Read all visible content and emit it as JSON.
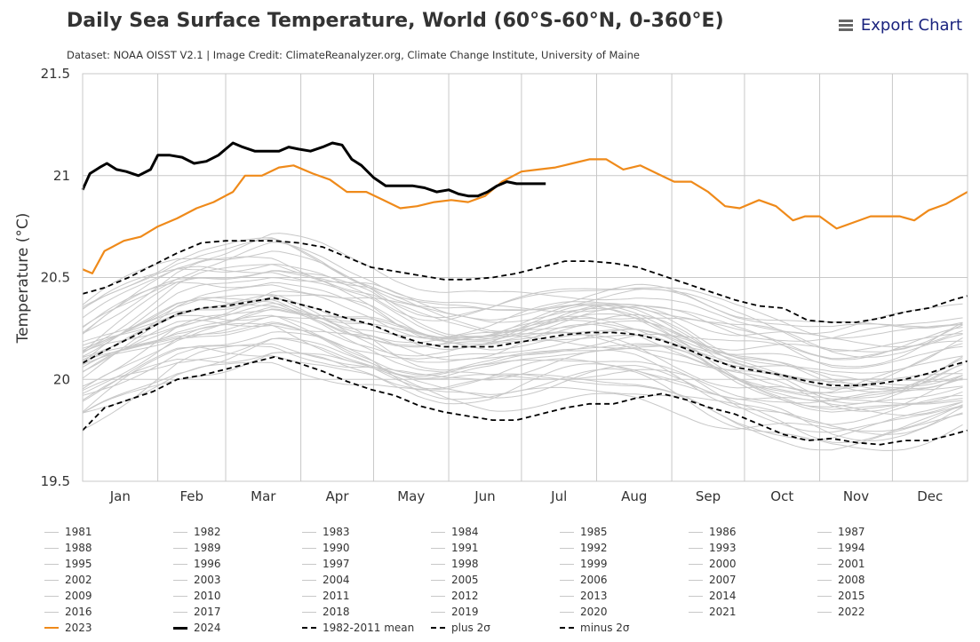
{
  "title": "Daily Sea Surface Temperature, World (60°S-60°N, 0-360°E)",
  "subtitle": "Dataset: NOAA OISST V2.1 | Image Credit: ClimateReanalyzer.org, Climate Change Institute, University of Maine",
  "export_label": "Export Chart",
  "colors": {
    "grey": "#c8c8c8",
    "y2023": "#ef8a1a",
    "y2024": "#000000",
    "mean": "#000000",
    "grid": "#c8c8c8"
  },
  "legend": [
    {
      "label": "1981",
      "style": "grey"
    },
    {
      "label": "1982",
      "style": "grey"
    },
    {
      "label": "1983",
      "style": "grey"
    },
    {
      "label": "1984",
      "style": "grey"
    },
    {
      "label": "1985",
      "style": "grey"
    },
    {
      "label": "1986",
      "style": "grey"
    },
    {
      "label": "1987",
      "style": "grey"
    },
    {
      "label": "1988",
      "style": "grey"
    },
    {
      "label": "1989",
      "style": "grey"
    },
    {
      "label": "1990",
      "style": "grey"
    },
    {
      "label": "1991",
      "style": "grey"
    },
    {
      "label": "1992",
      "style": "grey"
    },
    {
      "label": "1993",
      "style": "grey"
    },
    {
      "label": "1994",
      "style": "grey"
    },
    {
      "label": "1995",
      "style": "grey"
    },
    {
      "label": "1996",
      "style": "grey"
    },
    {
      "label": "1997",
      "style": "grey"
    },
    {
      "label": "1998",
      "style": "grey"
    },
    {
      "label": "1999",
      "style": "grey"
    },
    {
      "label": "2000",
      "style": "grey"
    },
    {
      "label": "2001",
      "style": "grey"
    },
    {
      "label": "2002",
      "style": "grey"
    },
    {
      "label": "2003",
      "style": "grey"
    },
    {
      "label": "2004",
      "style": "grey"
    },
    {
      "label": "2005",
      "style": "grey"
    },
    {
      "label": "2006",
      "style": "grey"
    },
    {
      "label": "2007",
      "style": "grey"
    },
    {
      "label": "2008",
      "style": "grey"
    },
    {
      "label": "2009",
      "style": "grey"
    },
    {
      "label": "2010",
      "style": "grey"
    },
    {
      "label": "2011",
      "style": "grey"
    },
    {
      "label": "2012",
      "style": "grey"
    },
    {
      "label": "2013",
      "style": "grey"
    },
    {
      "label": "2014",
      "style": "grey"
    },
    {
      "label": "2015",
      "style": "grey"
    },
    {
      "label": "2016",
      "style": "grey"
    },
    {
      "label": "2017",
      "style": "grey"
    },
    {
      "label": "2018",
      "style": "grey"
    },
    {
      "label": "2019",
      "style": "grey"
    },
    {
      "label": "2020",
      "style": "grey"
    },
    {
      "label": "2021",
      "style": "grey"
    },
    {
      "label": "2022",
      "style": "grey"
    },
    {
      "label": "2023",
      "style": "y2023"
    },
    {
      "label": "2024",
      "style": "y2024"
    },
    {
      "label": "1982-2011 mean",
      "style": "mean"
    },
    {
      "label": "plus 2σ",
      "style": "sigma"
    },
    {
      "label": "minus 2σ",
      "style": "sigma"
    }
  ],
  "chart_data": {
    "type": "line",
    "xlabel": "",
    "ylabel": "Temperature (°C)",
    "ylim": [
      19.5,
      21.5
    ],
    "yticks": [
      19.5,
      20,
      20.5,
      21,
      21.5
    ],
    "ytick_labels": [
      "19.5",
      "20",
      "20.5",
      "21",
      "21.5"
    ],
    "xlim": [
      1,
      366
    ],
    "month_labels": [
      "Jan",
      "Feb",
      "Mar",
      "Apr",
      "May",
      "Jun",
      "Jul",
      "Aug",
      "Sep",
      "Oct",
      "Nov",
      "Dec"
    ],
    "month_starts": [
      1,
      32,
      60,
      91,
      121,
      152,
      182,
      213,
      244,
      274,
      305,
      335
    ],
    "grid": true,
    "legend_position": "bottom",
    "series": [
      {
        "name": "2023",
        "role": "highlight-orange",
        "points": [
          [
            1,
            20.54
          ],
          [
            5,
            20.52
          ],
          [
            10,
            20.63
          ],
          [
            18,
            20.68
          ],
          [
            25,
            20.7
          ],
          [
            32,
            20.75
          ],
          [
            40,
            20.79
          ],
          [
            48,
            20.84
          ],
          [
            55,
            20.87
          ],
          [
            63,
            20.92
          ],
          [
            68,
            21.0
          ],
          [
            75,
            21.0
          ],
          [
            82,
            21.04
          ],
          [
            88,
            21.05
          ],
          [
            96,
            21.01
          ],
          [
            103,
            20.98
          ],
          [
            110,
            20.92
          ],
          [
            118,
            20.92
          ],
          [
            125,
            20.88
          ],
          [
            132,
            20.84
          ],
          [
            139,
            20.85
          ],
          [
            146,
            20.87
          ],
          [
            153,
            20.88
          ],
          [
            160,
            20.87
          ],
          [
            167,
            20.9
          ],
          [
            174,
            20.97
          ],
          [
            182,
            21.02
          ],
          [
            189,
            21.03
          ],
          [
            196,
            21.04
          ],
          [
            203,
            21.06
          ],
          [
            210,
            21.08
          ],
          [
            217,
            21.08
          ],
          [
            224,
            21.03
          ],
          [
            231,
            21.05
          ],
          [
            238,
            21.01
          ],
          [
            245,
            20.97
          ],
          [
            252,
            20.97
          ],
          [
            259,
            20.92
          ],
          [
            266,
            20.85
          ],
          [
            272,
            20.84
          ],
          [
            280,
            20.88
          ],
          [
            287,
            20.85
          ],
          [
            294,
            20.78
          ],
          [
            299,
            20.8
          ],
          [
            305,
            20.8
          ],
          [
            312,
            20.74
          ],
          [
            319,
            20.77
          ],
          [
            326,
            20.8
          ],
          [
            332,
            20.8
          ],
          [
            338,
            20.8
          ],
          [
            344,
            20.78
          ],
          [
            350,
            20.83
          ],
          [
            357,
            20.86
          ],
          [
            366,
            20.92
          ]
        ]
      },
      {
        "name": "2024",
        "role": "highlight-black",
        "points": [
          [
            1,
            20.93
          ],
          [
            4,
            21.01
          ],
          [
            8,
            21.04
          ],
          [
            11,
            21.06
          ],
          [
            15,
            21.03
          ],
          [
            19,
            21.02
          ],
          [
            24,
            21.0
          ],
          [
            29,
            21.03
          ],
          [
            32,
            21.1
          ],
          [
            37,
            21.1
          ],
          [
            42,
            21.09
          ],
          [
            47,
            21.06
          ],
          [
            52,
            21.07
          ],
          [
            57,
            21.1
          ],
          [
            60,
            21.13
          ],
          [
            63,
            21.16
          ],
          [
            67,
            21.14
          ],
          [
            72,
            21.12
          ],
          [
            77,
            21.12
          ],
          [
            82,
            21.12
          ],
          [
            86,
            21.14
          ],
          [
            90,
            21.13
          ],
          [
            95,
            21.12
          ],
          [
            100,
            21.14
          ],
          [
            104,
            21.16
          ],
          [
            108,
            21.15
          ],
          [
            112,
            21.08
          ],
          [
            116,
            21.05
          ],
          [
            121,
            20.99
          ],
          [
            126,
            20.95
          ],
          [
            131,
            20.95
          ],
          [
            137,
            20.95
          ],
          [
            142,
            20.94
          ],
          [
            147,
            20.92
          ],
          [
            152,
            20.93
          ],
          [
            156,
            20.91
          ],
          [
            160,
            20.9
          ],
          [
            164,
            20.9
          ],
          [
            168,
            20.92
          ],
          [
            172,
            20.95
          ],
          [
            176,
            20.97
          ],
          [
            180,
            20.96
          ],
          [
            184,
            20.96
          ],
          [
            188,
            20.96
          ],
          [
            192,
            20.96
          ]
        ]
      },
      {
        "name": "1982-2011 mean",
        "role": "mean",
        "points": [
          [
            1,
            20.08
          ],
          [
            10,
            20.14
          ],
          [
            20,
            20.2
          ],
          [
            30,
            20.26
          ],
          [
            40,
            20.32
          ],
          [
            50,
            20.35
          ],
          [
            60,
            20.36
          ],
          [
            70,
            20.38
          ],
          [
            80,
            20.4
          ],
          [
            90,
            20.37
          ],
          [
            100,
            20.34
          ],
          [
            110,
            20.3
          ],
          [
            120,
            20.27
          ],
          [
            130,
            20.22
          ],
          [
            140,
            20.18
          ],
          [
            150,
            20.16
          ],
          [
            160,
            20.16
          ],
          [
            170,
            20.16
          ],
          [
            180,
            20.18
          ],
          [
            190,
            20.2
          ],
          [
            200,
            20.22
          ],
          [
            210,
            20.23
          ],
          [
            220,
            20.23
          ],
          [
            230,
            20.22
          ],
          [
            240,
            20.19
          ],
          [
            250,
            20.15
          ],
          [
            260,
            20.1
          ],
          [
            270,
            20.06
          ],
          [
            280,
            20.04
          ],
          [
            290,
            20.02
          ],
          [
            300,
            19.99
          ],
          [
            310,
            19.97
          ],
          [
            320,
            19.97
          ],
          [
            330,
            19.98
          ],
          [
            340,
            20.0
          ],
          [
            350,
            20.03
          ],
          [
            360,
            20.07
          ],
          [
            366,
            20.09
          ]
        ]
      },
      {
        "name": "plus 2σ",
        "role": "sigma",
        "points": [
          [
            1,
            20.42
          ],
          [
            10,
            20.45
          ],
          [
            20,
            20.5
          ],
          [
            30,
            20.56
          ],
          [
            40,
            20.62
          ],
          [
            50,
            20.67
          ],
          [
            60,
            20.68
          ],
          [
            70,
            20.68
          ],
          [
            80,
            20.68
          ],
          [
            90,
            20.67
          ],
          [
            100,
            20.65
          ],
          [
            110,
            20.6
          ],
          [
            120,
            20.55
          ],
          [
            130,
            20.53
          ],
          [
            140,
            20.51
          ],
          [
            150,
            20.49
          ],
          [
            160,
            20.49
          ],
          [
            170,
            20.5
          ],
          [
            180,
            20.52
          ],
          [
            190,
            20.55
          ],
          [
            200,
            20.58
          ],
          [
            210,
            20.58
          ],
          [
            220,
            20.57
          ],
          [
            230,
            20.55
          ],
          [
            240,
            20.51
          ],
          [
            250,
            20.47
          ],
          [
            260,
            20.43
          ],
          [
            270,
            20.39
          ],
          [
            280,
            20.36
          ],
          [
            290,
            20.35
          ],
          [
            300,
            20.29
          ],
          [
            310,
            20.28
          ],
          [
            320,
            20.28
          ],
          [
            330,
            20.3
          ],
          [
            340,
            20.33
          ],
          [
            350,
            20.35
          ],
          [
            360,
            20.39
          ],
          [
            366,
            20.41
          ]
        ]
      },
      {
        "name": "minus 2σ",
        "role": "sigma",
        "points": [
          [
            1,
            19.75
          ],
          [
            10,
            19.86
          ],
          [
            20,
            19.9
          ],
          [
            30,
            19.94
          ],
          [
            40,
            20.0
          ],
          [
            50,
            20.02
          ],
          [
            60,
            20.05
          ],
          [
            70,
            20.08
          ],
          [
            80,
            20.11
          ],
          [
            90,
            20.08
          ],
          [
            100,
            20.04
          ],
          [
            110,
            19.99
          ],
          [
            120,
            19.95
          ],
          [
            130,
            19.92
          ],
          [
            140,
            19.87
          ],
          [
            150,
            19.84
          ],
          [
            160,
            19.82
          ],
          [
            170,
            19.8
          ],
          [
            180,
            19.8
          ],
          [
            190,
            19.83
          ],
          [
            200,
            19.86
          ],
          [
            210,
            19.88
          ],
          [
            220,
            19.88
          ],
          [
            230,
            19.91
          ],
          [
            240,
            19.93
          ],
          [
            250,
            19.9
          ],
          [
            260,
            19.86
          ],
          [
            270,
            19.83
          ],
          [
            280,
            19.78
          ],
          [
            290,
            19.73
          ],
          [
            300,
            19.7
          ],
          [
            310,
            19.71
          ],
          [
            320,
            19.69
          ],
          [
            330,
            19.68
          ],
          [
            340,
            19.7
          ],
          [
            350,
            19.7
          ],
          [
            360,
            19.73
          ],
          [
            366,
            19.75
          ]
        ]
      }
    ]
  }
}
